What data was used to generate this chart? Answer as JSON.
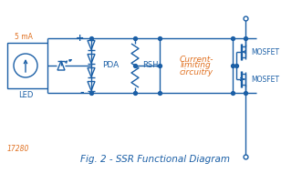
{
  "title": "Fig. 2 - SSR Functional Diagram",
  "fig_number": "17280",
  "current_label": "5 mA",
  "led_label": "LED",
  "pda_label": "PDA",
  "rsh_label": "RSH",
  "box_label_line1": "Current-",
  "box_label_line2": "limiting",
  "box_label_line3": "circuitry",
  "mosfet_label": "MOSFET",
  "plus_label": "+",
  "minus_label": "-",
  "blue": "#1B5FA6",
  "orange": "#E07020",
  "bg": "#FFFFFF",
  "lw": 1.0
}
